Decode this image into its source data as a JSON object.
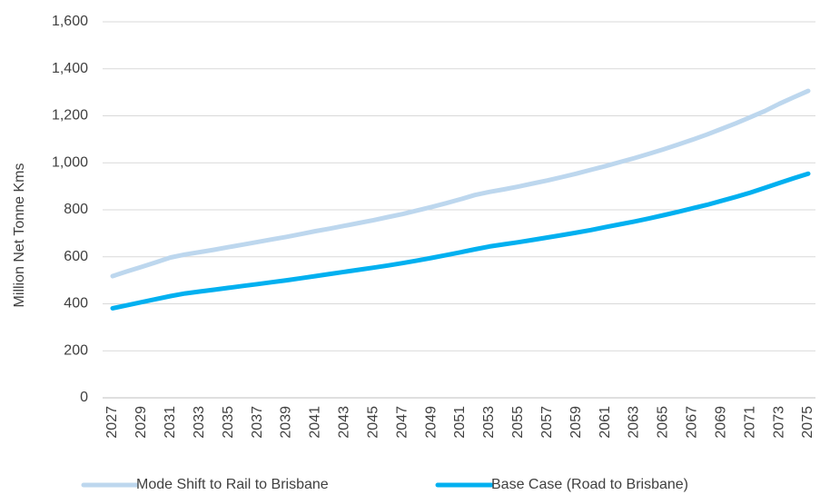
{
  "chart_data": {
    "type": "line",
    "title": "",
    "xlabel": "",
    "ylabel": "Million Net Tonne Kms",
    "ylim": [
      0,
      1600
    ],
    "yticks": [
      0,
      200,
      400,
      600,
      800,
      1000,
      1200,
      1400,
      1600
    ],
    "ytick_labels": [
      "0",
      "200",
      "400",
      "600",
      "800",
      "1,000",
      "1,200",
      "1,400",
      "1,600"
    ],
    "x": [
      2027,
      2028,
      2029,
      2030,
      2031,
      2032,
      2033,
      2034,
      2035,
      2036,
      2037,
      2038,
      2039,
      2040,
      2041,
      2042,
      2043,
      2044,
      2045,
      2046,
      2047,
      2048,
      2049,
      2050,
      2051,
      2052,
      2053,
      2054,
      2055,
      2056,
      2057,
      2058,
      2059,
      2060,
      2061,
      2062,
      2063,
      2064,
      2065,
      2066,
      2067,
      2068,
      2069,
      2070,
      2071,
      2072,
      2073,
      2074,
      2075
    ],
    "x_tick_labels": [
      "2027",
      "2029",
      "2031",
      "2033",
      "2035",
      "2037",
      "2039",
      "2041",
      "2043",
      "2045",
      "2047",
      "2049",
      "2051",
      "2053",
      "2055",
      "2057",
      "2059",
      "2061",
      "2063",
      "2065",
      "2067",
      "2069",
      "2071",
      "2073",
      "2075"
    ],
    "grid": "horizontal",
    "legend": "bottom",
    "series": [
      {
        "name": "Mode Shift to Rail to Brisbane",
        "color": "#bdd7ee",
        "values": [
          518,
          538,
          557,
          577,
          597,
          610,
          620,
          630,
          641,
          652,
          663,
          674,
          685,
          697,
          709,
          720,
          732,
          744,
          756,
          769,
          782,
          797,
          812,
          828,
          845,
          863,
          876,
          887,
          899,
          912,
          925,
          939,
          954,
          970,
          986,
          1003,
          1020,
          1038,
          1057,
          1077,
          1098,
          1120,
          1144,
          1168,
          1194,
          1220,
          1251,
          1279,
          1306
        ]
      },
      {
        "name": "Base Case (Road to Brisbane)",
        "color": "#00b0f0",
        "values": [
          381,
          394,
          407,
          420,
          433,
          444,
          452,
          460,
          468,
          476,
          484,
          492,
          500,
          509,
          518,
          527,
          536,
          545,
          554,
          563,
          573,
          584,
          595,
          607,
          619,
          632,
          644,
          653,
          662,
          672,
          682,
          692,
          703,
          714,
          726,
          738,
          750,
          763,
          777,
          791,
          806,
          821,
          838,
          855,
          873,
          893,
          914,
          934,
          954
        ]
      }
    ]
  }
}
